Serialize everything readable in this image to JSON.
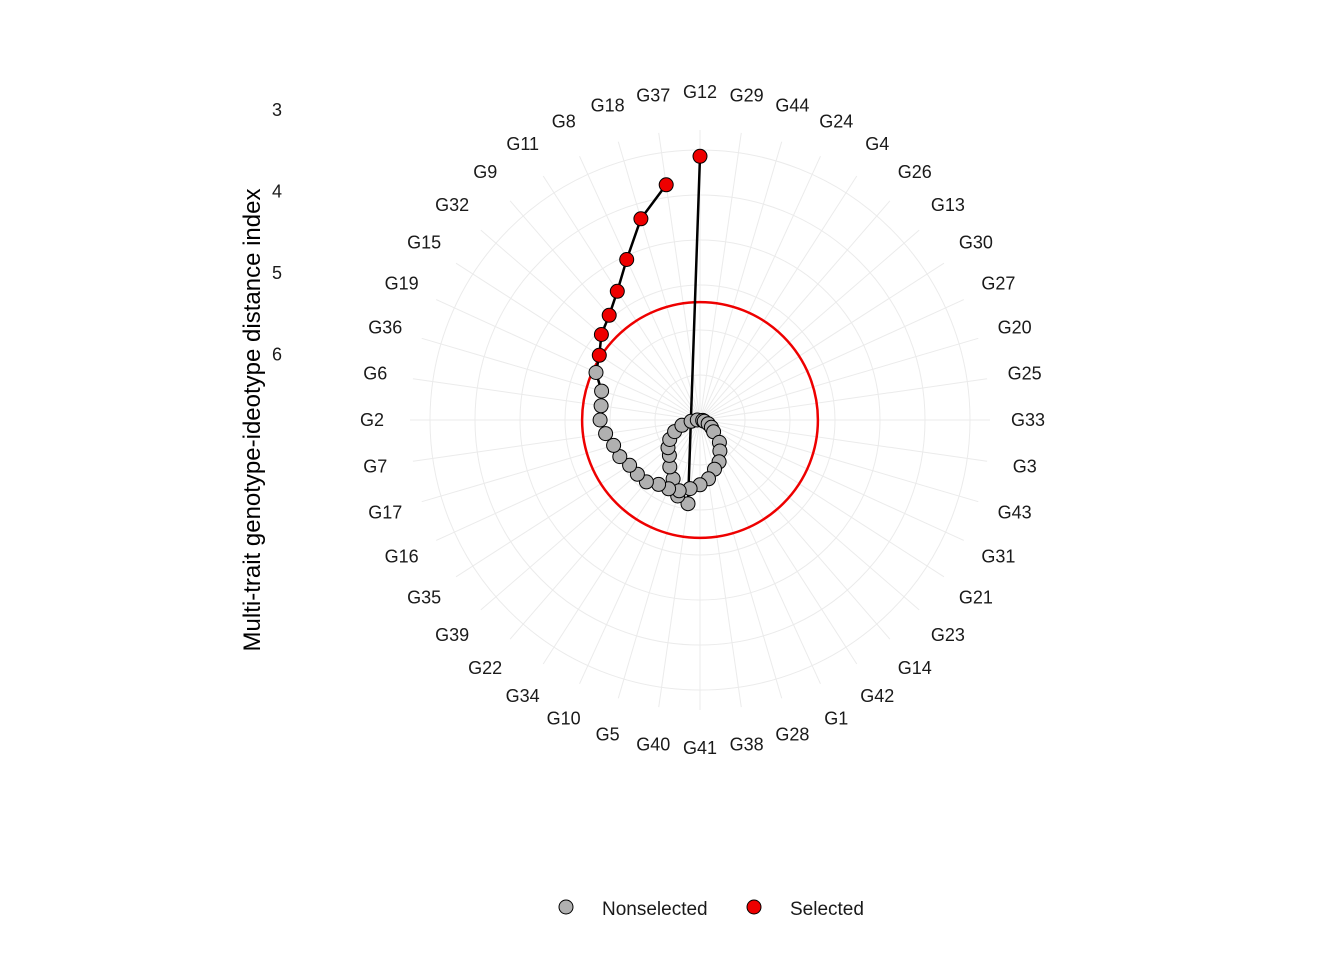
{
  "chart_data": {
    "type": "line",
    "subtype": "polar",
    "ylabel": "Multi-trait genotype-ideotype distance index",
    "y_ticks": [
      3,
      4,
      5,
      6
    ],
    "y_reversed": true,
    "grid": true,
    "legend_position": "bottom",
    "legend": [
      {
        "name": "Nonselected",
        "color": "#B0B0B0"
      },
      {
        "name": "Selected",
        "color": "#EE0000"
      }
    ],
    "selection_threshold": 4.69,
    "threshold_color": "#EE0000",
    "categories": [
      "G12",
      "G29",
      "G44",
      "G24",
      "G4",
      "G26",
      "G13",
      "G30",
      "G27",
      "G20",
      "G25",
      "G33",
      "G3",
      "G43",
      "G31",
      "G21",
      "G23",
      "G14",
      "G42",
      "G1",
      "G28",
      "G38",
      "G41",
      "G40",
      "G5",
      "G10",
      "G34",
      "G22",
      "G39",
      "G35",
      "G16",
      "G17",
      "G7",
      "G2",
      "G6",
      "G36",
      "G19",
      "G15",
      "G32",
      "G9",
      "G11",
      "G8",
      "G18",
      "G37"
    ],
    "series": [
      {
        "values": [
          3.07,
          6.94,
          6.88,
          6.72,
          6.62,
          6.52,
          6.47,
          6.4,
          6.31,
          6.21,
          6.1,
          6.03,
          5.97,
          5.95,
          5.9,
          5.85,
          5.8,
          5.67,
          5.59,
          5.49,
          5.43,
          5.34,
          5.28,
          5.23,
          5.18,
          5.16,
          5.15,
          5.09,
          5.08,
          5.07,
          5.02,
          5.0,
          4.94,
          4.89,
          4.89,
          4.86,
          4.73,
          4.67,
          4.55,
          4.46,
          4.3,
          4.04,
          3.67,
          3.36
        ],
        "selected": [
          true,
          false,
          false,
          false,
          false,
          false,
          false,
          false,
          false,
          false,
          false,
          false,
          false,
          false,
          false,
          false,
          false,
          false,
          false,
          false,
          false,
          false,
          false,
          false,
          false,
          false,
          false,
          false,
          false,
          false,
          false,
          false,
          false,
          false,
          false,
          false,
          false,
          true,
          true,
          true,
          true,
          true,
          true,
          true
        ]
      }
    ]
  }
}
